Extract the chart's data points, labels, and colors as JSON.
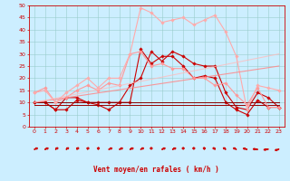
{
  "title": "",
  "xlabel": "Vent moyen/en rafales ( km/h )",
  "background_color": "#cceeff",
  "grid_color": "#99cccc",
  "xlim": [
    -0.5,
    23.5
  ],
  "ylim": [
    0,
    50
  ],
  "yticks": [
    0,
    5,
    10,
    15,
    20,
    25,
    30,
    35,
    40,
    45,
    50
  ],
  "xticks": [
    0,
    1,
    2,
    3,
    4,
    5,
    6,
    7,
    8,
    9,
    10,
    11,
    12,
    13,
    14,
    15,
    16,
    17,
    18,
    19,
    20,
    21,
    22,
    23
  ],
  "series": [
    {
      "x": [
        0,
        1,
        2,
        3,
        4,
        5,
        6,
        7,
        8,
        9,
        10,
        11,
        12,
        13,
        14,
        15,
        16,
        17,
        18,
        19,
        20,
        21,
        22,
        23
      ],
      "y": [
        10,
        10,
        7,
        7,
        11,
        10,
        9,
        7,
        10,
        10,
        32,
        26,
        29,
        29,
        25,
        20,
        21,
        20,
        10,
        7,
        5,
        11,
        8,
        8
      ],
      "color": "#cc0000",
      "linewidth": 0.8,
      "marker": "D",
      "markersize": 1.8,
      "alpha": 1.0,
      "linestyle": "-"
    },
    {
      "x": [
        0,
        1,
        2,
        3,
        4,
        5,
        6,
        7,
        8,
        9,
        10,
        11,
        12,
        13,
        14,
        15,
        16,
        17,
        18,
        19,
        20,
        21,
        22,
        23
      ],
      "y": [
        10,
        10,
        7,
        12,
        12,
        10,
        10,
        10,
        10,
        17,
        20,
        31,
        27,
        31,
        29,
        26,
        25,
        25,
        14,
        8,
        7,
        14,
        12,
        8
      ],
      "color": "#cc0000",
      "linewidth": 0.8,
      "marker": "D",
      "markersize": 1.8,
      "alpha": 1.0,
      "linestyle": "-"
    },
    {
      "x": [
        0,
        1,
        2,
        3,
        4,
        5,
        6,
        7,
        8,
        9,
        10,
        11,
        12,
        13,
        14,
        15,
        16,
        17,
        18,
        19,
        20,
        21,
        22,
        23
      ],
      "y": [
        9,
        9,
        9,
        9,
        9,
        9,
        9,
        9,
        9,
        9,
        9,
        9,
        9,
        9,
        9,
        9,
        9,
        9,
        9,
        9,
        9,
        9,
        9,
        9
      ],
      "color": "#990000",
      "linewidth": 0.7,
      "marker": null,
      "markersize": 0,
      "alpha": 1.0,
      "linestyle": "-"
    },
    {
      "x": [
        0,
        1,
        2,
        3,
        4,
        5,
        6,
        7,
        8,
        9,
        10,
        11,
        12,
        13,
        14,
        15,
        16,
        17,
        18,
        19,
        20,
        21,
        22,
        23
      ],
      "y": [
        10,
        10,
        10,
        10,
        10,
        10,
        10,
        10,
        10,
        10,
        10,
        10,
        10,
        10,
        10,
        10,
        10,
        10,
        10,
        10,
        10,
        10,
        10,
        10
      ],
      "color": "#880000",
      "linewidth": 0.7,
      "marker": null,
      "markersize": 0,
      "alpha": 1.0,
      "linestyle": "-"
    },
    {
      "x": [
        0,
        1,
        2,
        3,
        4,
        5,
        6,
        7,
        8,
        9,
        10,
        11,
        12,
        13,
        14,
        15,
        16,
        17,
        18,
        19,
        20,
        21,
        22,
        23
      ],
      "y": [
        14,
        16,
        10,
        12,
        15,
        17,
        15,
        18,
        17,
        30,
        31,
        25,
        26,
        24,
        24,
        20,
        20,
        17,
        18,
        13,
        9,
        16,
        8,
        8
      ],
      "color": "#ff9999",
      "linewidth": 0.8,
      "marker": "D",
      "markersize": 1.8,
      "alpha": 1.0,
      "linestyle": "-"
    },
    {
      "x": [
        0,
        1,
        2,
        3,
        4,
        5,
        6,
        7,
        8,
        9,
        10,
        11,
        12,
        13,
        14,
        15,
        16,
        17,
        18,
        19,
        20,
        21,
        22,
        23
      ],
      "y": [
        14,
        15,
        10,
        14,
        17,
        20,
        16,
        20,
        20,
        30,
        49,
        47,
        43,
        44,
        45,
        42,
        44,
        46,
        39,
        29,
        7,
        17,
        16,
        15
      ],
      "color": "#ffaaaa",
      "linewidth": 0.8,
      "marker": "D",
      "markersize": 1.8,
      "alpha": 1.0,
      "linestyle": "-"
    },
    {
      "x": [
        0,
        23
      ],
      "y": [
        10,
        25
      ],
      "color": "#ff8888",
      "linewidth": 0.8,
      "marker": null,
      "markersize": 0,
      "alpha": 0.85,
      "linestyle": "-"
    },
    {
      "x": [
        0,
        23
      ],
      "y": [
        10,
        30
      ],
      "color": "#ffbbbb",
      "linewidth": 0.8,
      "marker": null,
      "markersize": 0,
      "alpha": 0.75,
      "linestyle": "-"
    }
  ],
  "arrow_angles": [
    45,
    45,
    30,
    30,
    20,
    10,
    5,
    45,
    45,
    45,
    40,
    0,
    45,
    45,
    0,
    0,
    355,
    335,
    330,
    320,
    305,
    280,
    255,
    235
  ],
  "arrow_color": "#cc0000"
}
